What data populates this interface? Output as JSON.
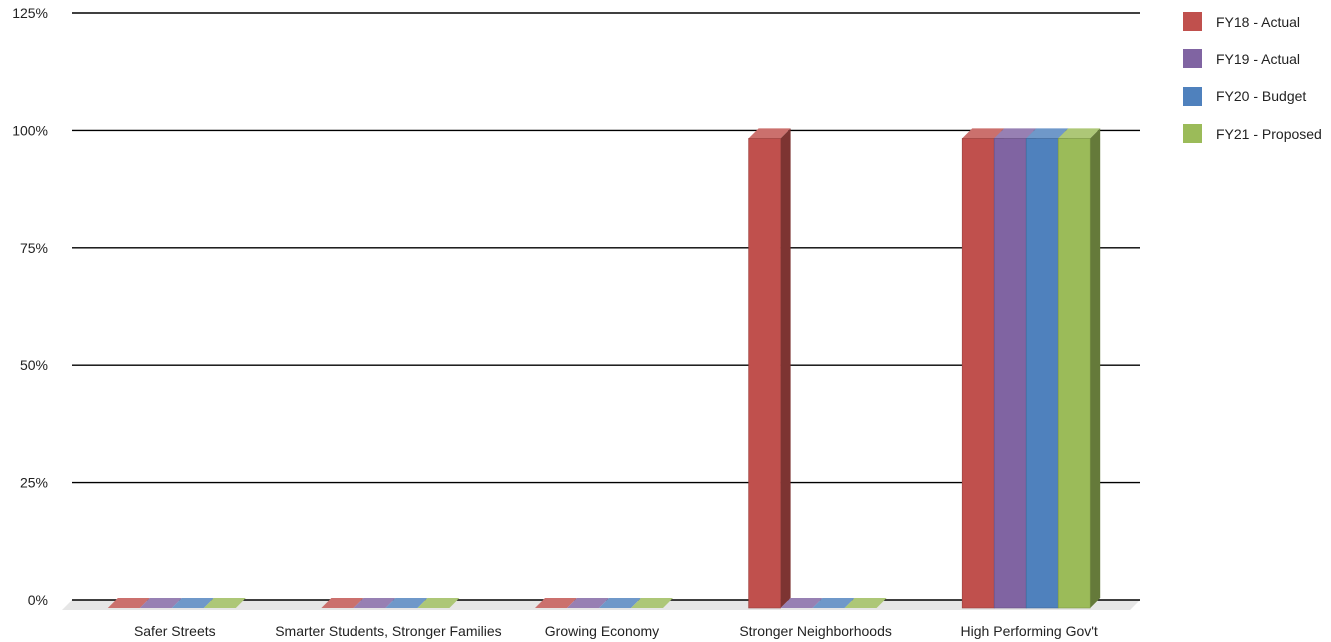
{
  "chart_data": {
    "type": "bar",
    "title": "",
    "xlabel": "",
    "ylabel": "",
    "categories": [
      "Safer Streets",
      "Smarter Students, Stronger Families",
      "Growing Economy",
      "Stronger Neighborhoods",
      "High Performing Gov't"
    ],
    "series": [
      {
        "name": "FY18 - Actual",
        "color": "#c0504d",
        "values": [
          0,
          0,
          0,
          100,
          100
        ]
      },
      {
        "name": "FY19 - Actual",
        "color": "#8064a2",
        "values": [
          0,
          0,
          0,
          0,
          100
        ]
      },
      {
        "name": "FY20 - Budget",
        "color": "#4f81bd",
        "values": [
          0,
          0,
          0,
          0,
          100
        ]
      },
      {
        "name": "FY21 - Proposed",
        "color": "#9bbb59",
        "values": [
          0,
          0,
          0,
          0,
          100
        ]
      }
    ],
    "ylim": [
      0,
      125
    ],
    "yticks": [
      "0%",
      "25%",
      "50%",
      "75%",
      "100%",
      "125%"
    ],
    "grid": true,
    "legend_position": "top-right",
    "style": "3d-column"
  }
}
